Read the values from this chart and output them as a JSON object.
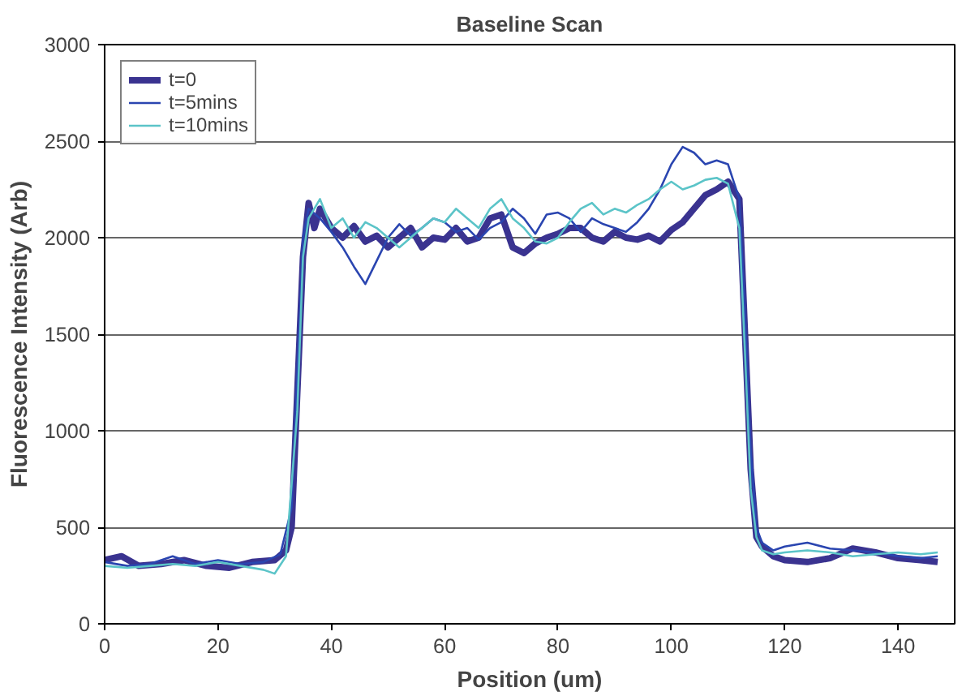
{
  "chart_data": {
    "type": "line",
    "title": "Baseline Scan",
    "xlabel": "Position (um)",
    "ylabel": "Fluorescence Intensity (Arb)",
    "xlim": [
      0,
      150
    ],
    "xticks": [
      0,
      20,
      40,
      60,
      80,
      100,
      120,
      140
    ],
    "ylim": [
      0,
      3000
    ],
    "yticks": [
      0,
      500,
      1000,
      1500,
      2000,
      2500,
      3000
    ],
    "grid": "y",
    "legend": "top left",
    "series": [
      {
        "name": "t=0",
        "color": "#3a3390",
        "x": [
          0,
          3,
          6,
          10,
          14,
          18,
          22,
          26,
          30,
          32,
          33,
          34,
          35,
          36,
          37,
          38,
          40,
          42,
          44,
          46,
          48,
          50,
          52,
          54,
          56,
          58,
          60,
          62,
          64,
          66,
          68,
          70,
          72,
          74,
          76,
          78,
          80,
          82,
          84,
          86,
          88,
          90,
          92,
          94,
          96,
          98,
          100,
          102,
          104,
          106,
          108,
          110,
          112,
          113,
          114,
          115,
          116,
          118,
          120,
          124,
          128,
          132,
          136,
          140,
          144,
          147
        ],
        "values": [
          330,
          350,
          300,
          310,
          330,
          300,
          290,
          320,
          330,
          380,
          500,
          1200,
          1900,
          2180,
          2050,
          2150,
          2050,
          2000,
          2060,
          1980,
          2010,
          1950,
          2000,
          2050,
          1950,
          2000,
          1990,
          2050,
          1980,
          2000,
          2100,
          2120,
          1950,
          1920,
          1970,
          2000,
          2020,
          2050,
          2050,
          2000,
          1980,
          2030,
          2000,
          1990,
          2010,
          1980,
          2040,
          2080,
          2150,
          2220,
          2250,
          2290,
          2200,
          1500,
          800,
          450,
          400,
          350,
          330,
          320,
          340,
          390,
          370,
          340,
          330,
          320
        ]
      },
      {
        "name": "t=5mins",
        "color": "#2a45b0",
        "x": [
          0,
          4,
          8,
          12,
          16,
          20,
          24,
          28,
          31,
          33,
          34,
          35,
          36,
          38,
          40,
          42,
          44,
          46,
          48,
          50,
          52,
          54,
          56,
          58,
          60,
          62,
          64,
          66,
          68,
          70,
          72,
          74,
          76,
          78,
          80,
          82,
          84,
          86,
          88,
          90,
          92,
          94,
          96,
          98,
          100,
          102,
          104,
          106,
          108,
          110,
          112,
          113,
          114,
          115,
          116,
          118,
          120,
          124,
          128,
          132,
          136,
          140,
          144,
          147
        ],
        "values": [
          320,
          300,
          310,
          350,
          310,
          330,
          310,
          320,
          360,
          600,
          1300,
          2000,
          2150,
          2100,
          2030,
          1950,
          1850,
          1760,
          1880,
          2000,
          2070,
          2010,
          2050,
          2100,
          2080,
          2030,
          2050,
          1990,
          2050,
          2080,
          2150,
          2100,
          2020,
          2120,
          2130,
          2100,
          2030,
          2100,
          2070,
          2050,
          2030,
          2080,
          2150,
          2250,
          2380,
          2470,
          2440,
          2380,
          2400,
          2380,
          2200,
          1600,
          900,
          500,
          420,
          380,
          400,
          420,
          390,
          380,
          370,
          350,
          340,
          350
        ]
      },
      {
        "name": "t=10mins",
        "color": "#5bc4c8",
        "x": [
          0,
          4,
          8,
          12,
          16,
          20,
          24,
          28,
          30,
          32,
          34,
          35,
          36,
          38,
          40,
          42,
          44,
          46,
          48,
          50,
          52,
          54,
          56,
          58,
          60,
          62,
          64,
          66,
          68,
          70,
          72,
          74,
          76,
          78,
          80,
          82,
          84,
          86,
          88,
          90,
          92,
          94,
          96,
          98,
          100,
          102,
          104,
          106,
          108,
          110,
          112,
          113,
          114,
          115,
          116,
          118,
          120,
          124,
          128,
          132,
          136,
          140,
          144,
          147
        ],
        "values": [
          300,
          290,
          300,
          310,
          300,
          320,
          300,
          280,
          260,
          350,
          1100,
          1900,
          2100,
          2200,
          2050,
          2100,
          2000,
          2080,
          2050,
          2000,
          1950,
          2000,
          2050,
          2100,
          2080,
          2150,
          2100,
          2050,
          2150,
          2200,
          2100,
          2050,
          1980,
          1970,
          2000,
          2080,
          2150,
          2180,
          2120,
          2150,
          2130,
          2170,
          2200,
          2250,
          2290,
          2250,
          2270,
          2300,
          2310,
          2280,
          2050,
          1400,
          700,
          450,
          380,
          360,
          370,
          380,
          370,
          350,
          360,
          370,
          360,
          370
        ]
      }
    ]
  }
}
